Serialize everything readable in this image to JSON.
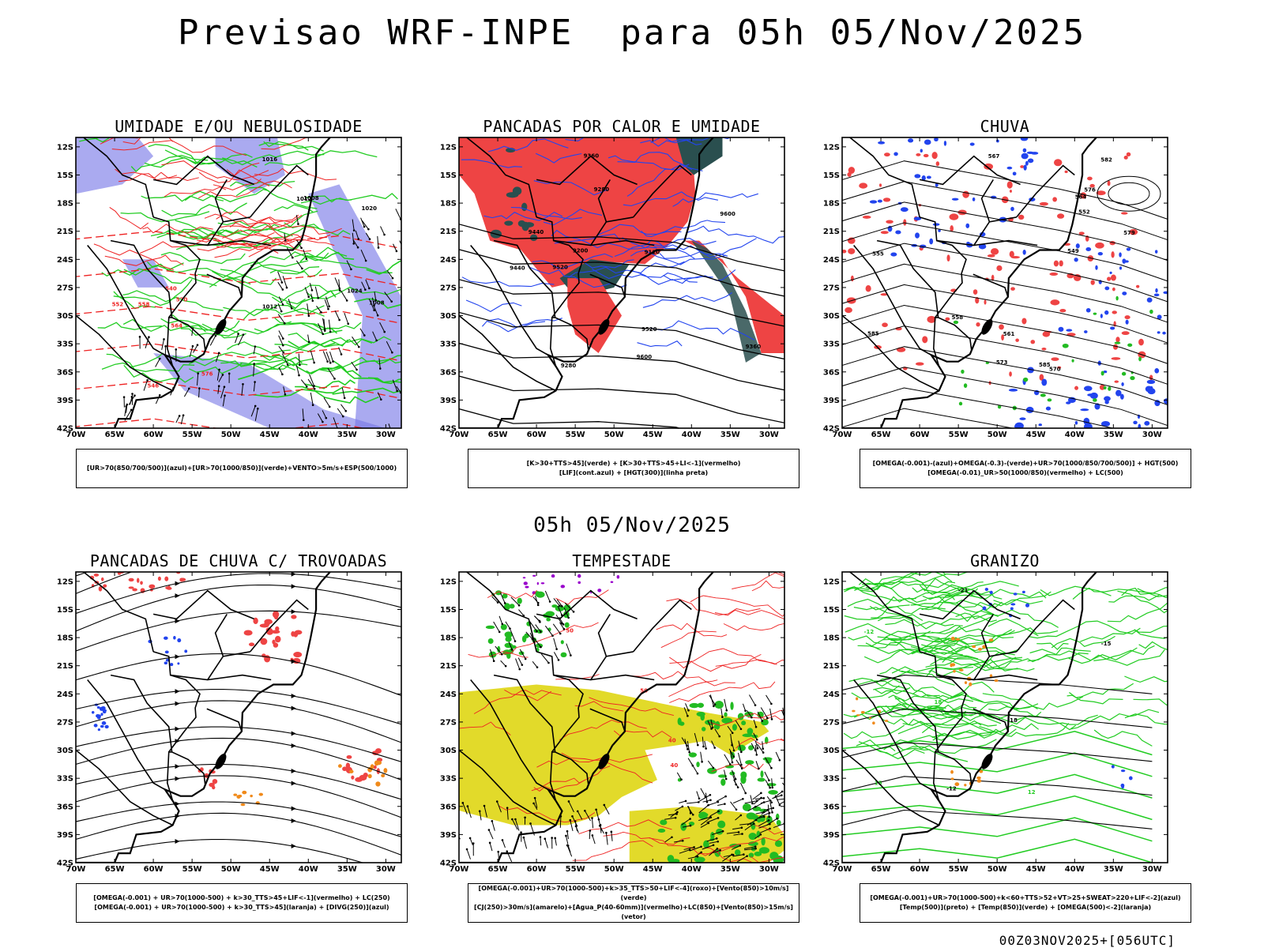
{
  "header": {
    "title": "Previsao WRF-INPE  para 05h 05/Nov/2025",
    "mid_time": "05h 05/Nov/2025",
    "run_stamp": "00Z03NOV2025+[056UTC]"
  },
  "axes": {
    "lat_labels": [
      "12S",
      "15S",
      "18S",
      "21S",
      "24S",
      "27S",
      "30S",
      "33S",
      "36S",
      "39S",
      "42S"
    ],
    "lon_labels": [
      "70W",
      "65W",
      "60W",
      "55W",
      "50W",
      "45W",
      "40W",
      "35W",
      "30W"
    ]
  },
  "panels": [
    {
      "title": "UMIDADE E/OU NEBULOSIDADE",
      "legend_lines": [
        "[UR>70(850/700/500)](azul)+[UR>70(1000/850)](verde)+VENTO>5m/s+ESP(500/1000)"
      ],
      "contour_labels": [
        "1012",
        "1008",
        "1016",
        "1020",
        "1024",
        "576",
        "570",
        "564",
        "558",
        "552",
        "546",
        "540",
        "1012",
        "1008"
      ]
    },
    {
      "title": "PANCADAS POR CALOR E UMIDADE",
      "legend_lines": [
        "[K>30+TTS>45](verde) + [K>30+TTS>45+LI<-1](vermelho)",
        "[LIF](cont.azul) + [HGT(300)](linha preta)"
      ],
      "contour_labels": [
        "9600",
        "9520",
        "9440",
        "9360",
        "9280",
        "9200",
        "9120",
        "9600",
        "9520",
        "9440",
        "9360",
        "9280"
      ]
    },
    {
      "title": "CHUVA",
      "legend_lines": [
        "[OMEGA(-0.001)-(azul)+OMEGA(-0.3)-(verde)+UR>70(1000/850/700/500)] + HGT(500)",
        "[OMEGA(-0.01)_UR>50(1000/850)(vermelho) + LC(500)"
      ],
      "contour_labels": [
        "585",
        "582",
        "579",
        "576",
        "573",
        "570",
        "567",
        "564",
        "561",
        "558",
        "555",
        "552",
        "549",
        "585"
      ]
    },
    {
      "title": "PANCADAS DE CHUVA C/ TROVOADAS",
      "legend_lines": [
        "[OMEGA(-0.001) + UR>70(1000-500) + k>30_TTS>45+LIF<-1](vermelho) + LC(250)",
        "[OMEGA(-0.001) + UR>70(1000-500) + k>30_TTS>45](laranja) + [DIVG(250)](azul)"
      ],
      "contour_labels": []
    },
    {
      "title": "TEMPESTADE",
      "legend_lines": [
        "[OMEGA(-0.001)+UR>70(1000-500)+k>35_TTS>50+LIF<-4](roxo)+[Vento(850)>10m/s](verde)",
        "[CJ(250)>30m/s](amarelo)+[Agua_P(40-60mm)](vermelho)+LC(850)+[Vento(850)>15m/s](vetor)"
      ],
      "contour_labels": [
        "40",
        "50",
        "40",
        "50"
      ]
    },
    {
      "title": "GRANIZO",
      "legend_lines": [
        "[OMEGA(-0.001)+UR>70(1000-500)+k<60+TTS>52+VT>25+SWEAT>220+LIF<-2](azul)",
        "[Temp(500)](preto) + [Temp(850)](verde) + [OMEGA(500)<-2](laranja)"
      ],
      "contour_labels": [
        "-12",
        "-15",
        "-18",
        "-21",
        "-12",
        "12",
        "15",
        "18"
      ]
    }
  ],
  "colors": {
    "shade_blue": "#aaaaf0",
    "shade_blue_dark": "#7777e6",
    "contour_green": "#22cc22",
    "contour_red": "#ee2222",
    "blue": "#2244ee",
    "green_fill": "#22bb22",
    "red_fill": "#ee4444",
    "dark_teal": "#2a4f4f",
    "yellow": "#e2da2a",
    "orange": "#f08a1a",
    "purple": "#9900cc"
  }
}
